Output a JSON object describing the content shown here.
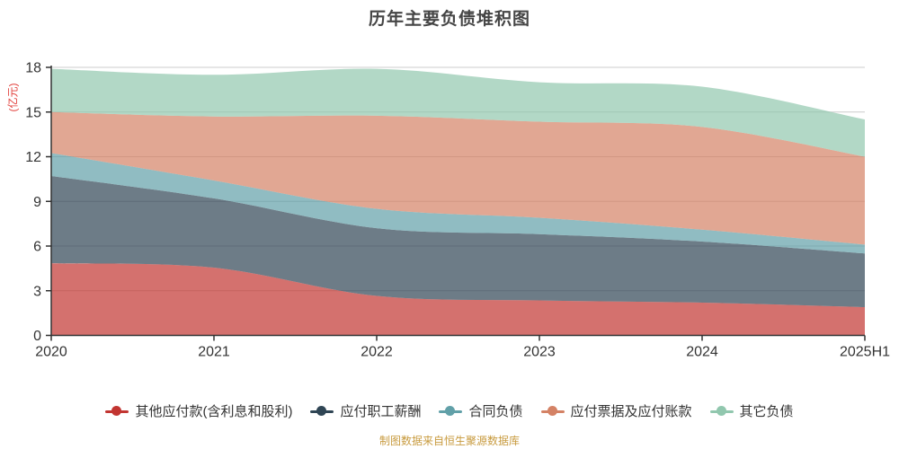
{
  "title": "历年主要负债堆积图",
  "y_axis_unit": "(亿元)",
  "footer": "制图数据来自恒生聚源数据库",
  "colors": {
    "title": "#454545",
    "axis_label": "#333333",
    "axis_line": "#333333",
    "grid_line": "#cccccc",
    "unit_label": "#e2403c",
    "footer": "#c89b3f"
  },
  "chart_data": {
    "type": "area",
    "stacked": true,
    "smooth": true,
    "grid": true,
    "legend_position": "bottom",
    "title": "历年主要负债堆积图",
    "ylabel": "(亿元)",
    "ylim": [
      0,
      18
    ],
    "y_ticks": [
      0,
      3,
      6,
      9,
      12,
      15,
      18
    ],
    "area_opacity": 0.7,
    "categories": [
      "2020",
      "2021",
      "2022",
      "2023",
      "2024",
      "2025H1"
    ],
    "series": [
      {
        "name": "其他应付款(含利息和股利)",
        "color": "#c23531",
        "values": [
          4.85,
          4.55,
          2.65,
          2.35,
          2.2,
          1.9
        ]
      },
      {
        "name": "应付职工薪酬",
        "color": "#2f4554",
        "values": [
          5.85,
          4.65,
          4.55,
          4.45,
          4.1,
          3.6
        ]
      },
      {
        "name": "合同负债",
        "color": "#61a0a8",
        "values": [
          1.55,
          1.2,
          1.3,
          1.1,
          0.8,
          0.6
        ]
      },
      {
        "name": "应付票据及应付账款",
        "color": "#d48265",
        "values": [
          2.75,
          4.3,
          6.25,
          6.45,
          6.9,
          5.9
        ]
      },
      {
        "name": "其它负债",
        "color": "#91c7ae",
        "values": [
          2.9,
          2.8,
          3.15,
          2.65,
          2.7,
          2.5
        ]
      }
    ]
  }
}
